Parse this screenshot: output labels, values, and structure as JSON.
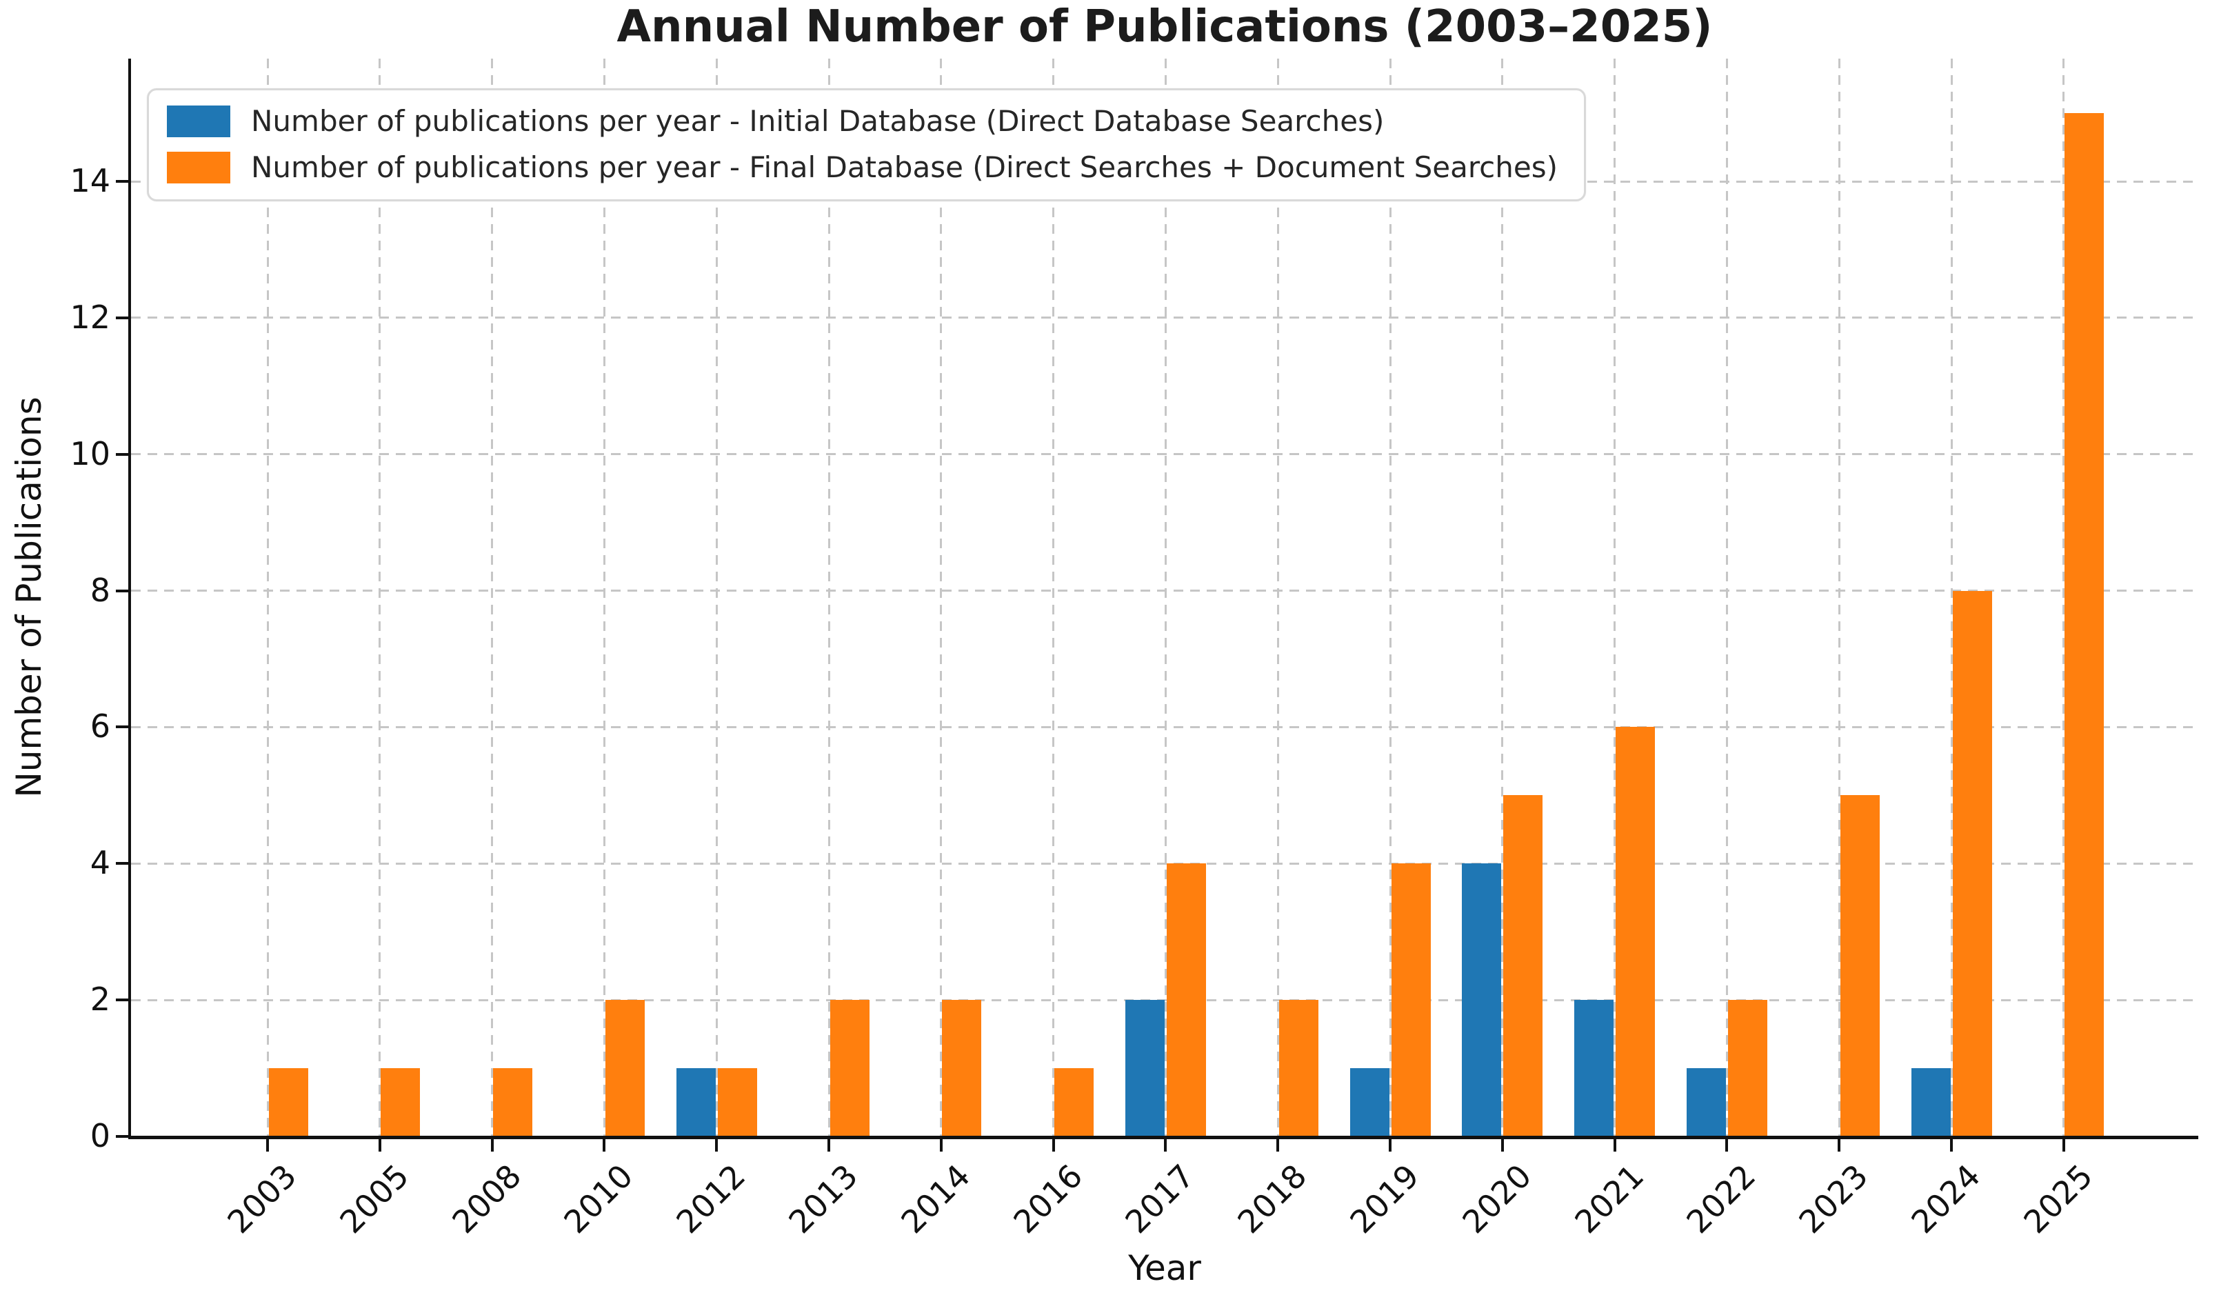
{
  "chart_data": {
    "type": "bar",
    "title": "Annual Number of Publications (2003–2025)",
    "xlabel": "Year",
    "ylabel": "Number of Publications",
    "categories": [
      "2003",
      "2005",
      "2008",
      "2010",
      "2012",
      "2013",
      "2014",
      "2016",
      "2017",
      "2018",
      "2019",
      "2020",
      "2021",
      "2022",
      "2023",
      "2024",
      "2025"
    ],
    "series": [
      {
        "name": "Number of publications per year - Initial Database (Direct Database Searches)",
        "color": "#1f77b4",
        "values": [
          0,
          0,
          0,
          0,
          1,
          0,
          0,
          0,
          2,
          0,
          1,
          4,
          2,
          1,
          0,
          1,
          0
        ]
      },
      {
        "name": "Number of publications per year - Final Database (Direct Searches + Document Searches)",
        "color": "#ff7f0e",
        "values": [
          1,
          1,
          1,
          2,
          1,
          2,
          2,
          1,
          4,
          2,
          4,
          5,
          6,
          2,
          5,
          8,
          15
        ]
      }
    ],
    "ylim": [
      0,
      15.8
    ],
    "y_ticks": [
      0,
      2,
      4,
      6,
      8,
      10,
      12,
      14
    ],
    "grid": "dashed",
    "legend_position": "upper-left"
  }
}
